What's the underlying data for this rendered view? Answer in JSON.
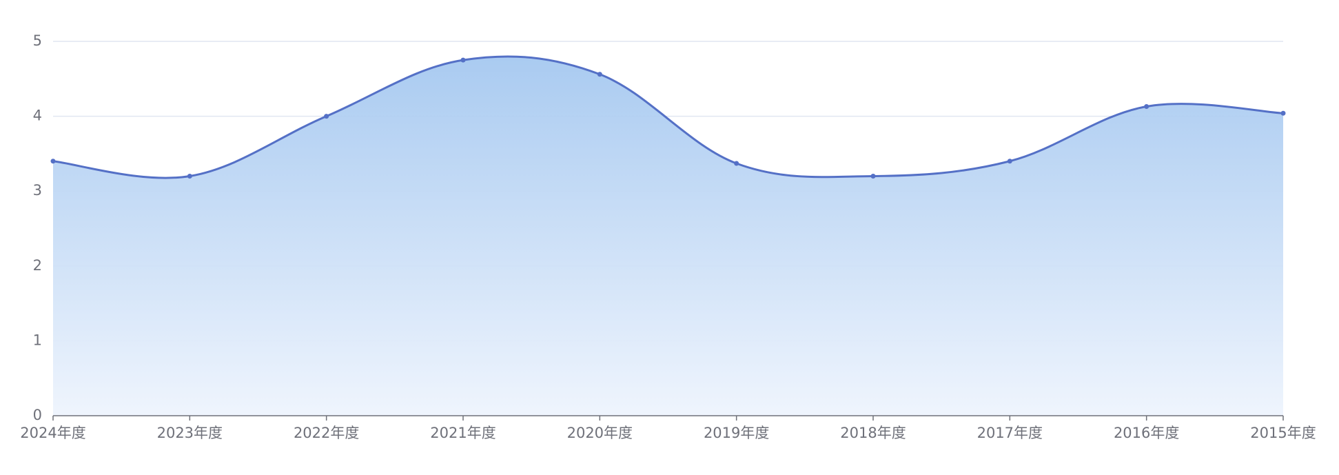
{
  "chart_data": {
    "type": "area",
    "categories": [
      "2024年度",
      "2023年度",
      "2022年度",
      "2021年度",
      "2020年度",
      "2019年度",
      "2018年度",
      "2017年度",
      "2016年度",
      "2015年度"
    ],
    "values": [
      3.4,
      3.2,
      4.0,
      4.75,
      4.56,
      3.37,
      3.2,
      3.4,
      4.13,
      4.04
    ],
    "color": "#5470c6",
    "fill_top": "#a5c8f0",
    "fill_bottom": "#eef4fd",
    "ylim": [
      0,
      5
    ],
    "yticks": [
      0,
      1,
      2,
      3,
      4,
      5
    ],
    "grid": true,
    "smooth": true
  }
}
